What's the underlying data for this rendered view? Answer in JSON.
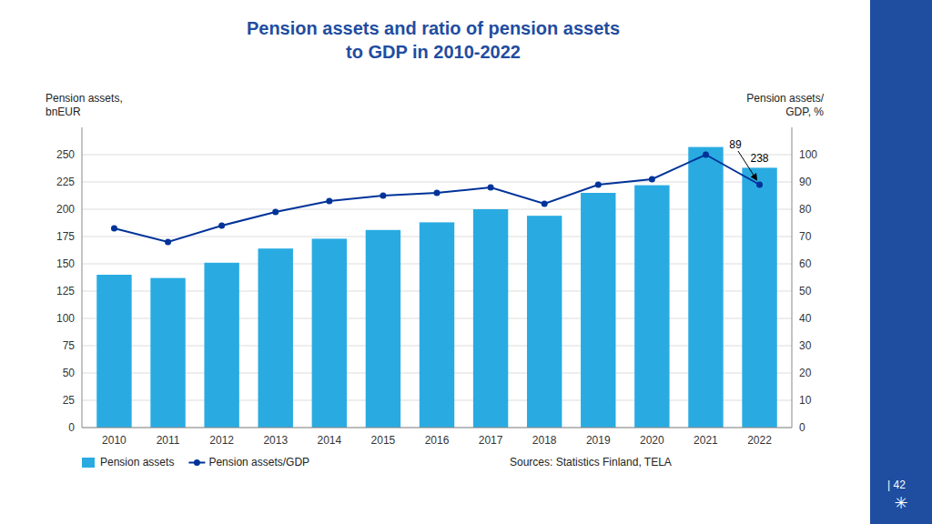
{
  "chart_data": {
    "type": "bar",
    "title": "Pension assets and ratio of pension assets\nto GDP in 2010-2022",
    "color": "#1f4da0",
    "ylabel": "Pension assets,\nbnEUR",
    "y2label": "Pension assets/\nGDP, %",
    "categories": [
      "2010",
      "2011",
      "2012",
      "2013",
      "2014",
      "2015",
      "2016",
      "2017",
      "2018",
      "2019",
      "2020",
      "2021",
      "2022"
    ],
    "series": [
      {
        "name": "Pension assets",
        "type": "bar",
        "color": "#29ABE2",
        "values": [
          140,
          137,
          151,
          164,
          173,
          181,
          188,
          200,
          194,
          215,
          222,
          257,
          238
        ]
      },
      {
        "name": "Pension assets/GDP",
        "type": "line",
        "axis": "y2",
        "color": "#003399",
        "marker": "circle",
        "values": [
          73,
          68,
          74,
          79,
          83,
          85,
          86,
          88,
          82,
          89,
          91,
          100,
          89
        ]
      }
    ],
    "ylim": [
      0,
      275
    ],
    "yticks": [
      0,
      25,
      50,
      75,
      100,
      125,
      150,
      175,
      200,
      225,
      250
    ],
    "y2lim": [
      0,
      110
    ],
    "y2ticks": [
      0,
      10,
      20,
      30,
      40,
      50,
      60,
      70,
      80,
      90,
      100
    ],
    "grid": true,
    "legend": "bottom",
    "annotations": [
      {
        "text": "238",
        "x": "2022",
        "y": 238
      },
      {
        "text": "89",
        "x": "2022",
        "y": 89,
        "axis": "y2"
      }
    ],
    "source": "Sources: Statistics Finland, TELA",
    "page_number": "| 42",
    "logo": "✳"
  }
}
